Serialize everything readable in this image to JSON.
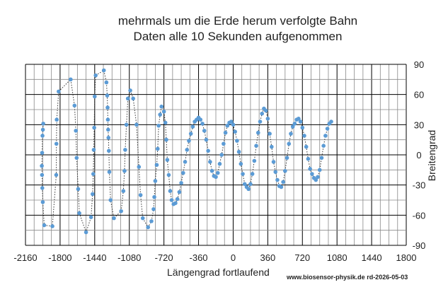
{
  "chart_data": {
    "type": "scatter",
    "title": "mehrmals um die Erde herum verfolgte Bahn",
    "subtitle": "Daten alle 10 Sekunden aufgenommen",
    "xlabel": "Längengrad fortlaufend",
    "ylabel": "Breitengrad",
    "xlim": [
      -2160,
      1800
    ],
    "ylim": [
      -90,
      90
    ],
    "x_ticks": [
      "-2160",
      "-1800",
      "-1440",
      "-1080",
      "-720",
      "-360",
      "0",
      "360",
      "720",
      "1080",
      "1440",
      "1800"
    ],
    "y_ticks": [
      "90",
      "60",
      "30",
      "0",
      "-30",
      "-60",
      "-90"
    ],
    "grid": true,
    "legend": "none",
    "credit": "www.biosensor-physik.de  rd-2026-05-03",
    "marker_color": "#5b9bd5",
    "line_style": "dotted",
    "series": [
      {
        "points": [
          [
            -1975,
            31
          ],
          [
            -1979,
            25
          ],
          [
            -1983,
            19
          ],
          [
            -1987,
            2
          ],
          [
            -1990,
            -11
          ],
          [
            -1988,
            -20
          ],
          [
            -1985,
            -33
          ],
          [
            -1980,
            -47
          ],
          [
            -1965,
            -70
          ],
          [
            -1880,
            -71
          ],
          [
            -1840,
            -20
          ],
          [
            -1838,
            11
          ],
          [
            -1835,
            35
          ],
          [
            -1815,
            63
          ],
          [
            -1690,
            75
          ],
          [
            -1650,
            49
          ],
          [
            -1636,
            24
          ],
          [
            -1628,
            -3
          ],
          [
            -1612,
            -34
          ],
          [
            -1600,
            -58
          ],
          [
            -1530,
            -77
          ],
          [
            -1478,
            -62
          ],
          [
            -1462,
            -39
          ],
          [
            -1455,
            -19
          ],
          [
            -1450,
            5
          ],
          [
            -1445,
            27
          ],
          [
            -1440,
            58
          ],
          [
            -1430,
            79
          ],
          [
            -1345,
            84
          ],
          [
            -1318,
            72
          ],
          [
            -1310,
            59
          ],
          [
            -1306,
            47
          ],
          [
            -1303,
            35
          ],
          [
            -1300,
            25
          ],
          [
            -1297,
            17
          ],
          [
            -1293,
            4
          ],
          [
            -1288,
            -17
          ],
          [
            -1275,
            -45
          ],
          [
            -1240,
            -63
          ],
          [
            -1165,
            -56
          ],
          [
            -1142,
            -36
          ],
          [
            -1130,
            -16
          ],
          [
            -1123,
            5
          ],
          [
            -1110,
            30
          ],
          [
            -1095,
            56
          ],
          [
            -1070,
            64
          ],
          [
            -1040,
            56
          ],
          [
            -1005,
            30
          ],
          [
            -980,
            -12
          ],
          [
            -963,
            -40
          ],
          [
            -940,
            -63
          ],
          [
            -885,
            -72
          ],
          [
            -850,
            -66
          ],
          [
            -828,
            -54
          ],
          [
            -820,
            -42
          ],
          [
            -810,
            -26
          ],
          [
            -795,
            -10
          ],
          [
            -785,
            6
          ],
          [
            -775,
            29
          ],
          [
            -760,
            40
          ],
          [
            -745,
            48
          ],
          [
            -720,
            43
          ],
          [
            -705,
            32
          ],
          [
            -695,
            15
          ],
          [
            -685,
            -5
          ],
          [
            -670,
            -20
          ],
          [
            -655,
            -36
          ],
          [
            -640,
            -45
          ],
          [
            -620,
            -49
          ],
          [
            -600,
            -48
          ],
          [
            -580,
            -44
          ],
          [
            -560,
            -37
          ],
          [
            -540,
            -28
          ],
          [
            -520,
            -18
          ],
          [
            -500,
            -7
          ],
          [
            -480,
            5
          ],
          [
            -460,
            14
          ],
          [
            -440,
            21
          ],
          [
            -420,
            28
          ],
          [
            -400,
            33
          ],
          [
            -380,
            35
          ],
          [
            -360,
            37
          ],
          [
            -340,
            35
          ],
          [
            -320,
            31
          ],
          [
            -300,
            24
          ],
          [
            -280,
            15
          ],
          [
            -260,
            4
          ],
          [
            -240,
            -7
          ],
          [
            -220,
            -16
          ],
          [
            -200,
            -21
          ],
          [
            -180,
            -22
          ],
          [
            -160,
            -18
          ],
          [
            -140,
            -9
          ],
          [
            -120,
            0
          ],
          [
            -100,
            11
          ],
          [
            -80,
            22
          ],
          [
            -60,
            29
          ],
          [
            -40,
            32
          ],
          [
            -20,
            33
          ],
          [
            0,
            30
          ],
          [
            20,
            23
          ],
          [
            40,
            14
          ],
          [
            60,
            3
          ],
          [
            80,
            -9
          ],
          [
            100,
            -19
          ],
          [
            120,
            -29
          ],
          [
            140,
            -32
          ],
          [
            160,
            -34
          ],
          [
            180,
            -29
          ],
          [
            200,
            -19
          ],
          [
            220,
            -6
          ],
          [
            240,
            9
          ],
          [
            260,
            22
          ],
          [
            280,
            33
          ],
          [
            300,
            41
          ],
          [
            320,
            46
          ],
          [
            340,
            44
          ],
          [
            360,
            36
          ],
          [
            380,
            21
          ],
          [
            400,
            8
          ],
          [
            420,
            -7
          ],
          [
            440,
            -17
          ],
          [
            460,
            -25
          ],
          [
            480,
            -31
          ],
          [
            500,
            -32
          ],
          [
            520,
            -27
          ],
          [
            540,
            -16
          ],
          [
            560,
            -3
          ],
          [
            580,
            11
          ],
          [
            600,
            21
          ],
          [
            620,
            28
          ],
          [
            640,
            31
          ],
          [
            660,
            35
          ],
          [
            680,
            36
          ],
          [
            700,
            33
          ],
          [
            720,
            27
          ],
          [
            740,
            19
          ],
          [
            760,
            8
          ],
          [
            780,
            -4
          ],
          [
            800,
            -14
          ],
          [
            820,
            -19
          ],
          [
            840,
            -23
          ],
          [
            860,
            -25
          ],
          [
            880,
            -22
          ],
          [
            900,
            -15
          ],
          [
            920,
            -3
          ],
          [
            940,
            9
          ],
          [
            960,
            19
          ],
          [
            980,
            26
          ],
          [
            1000,
            31
          ],
          [
            1020,
            33
          ]
        ]
      }
    ]
  }
}
